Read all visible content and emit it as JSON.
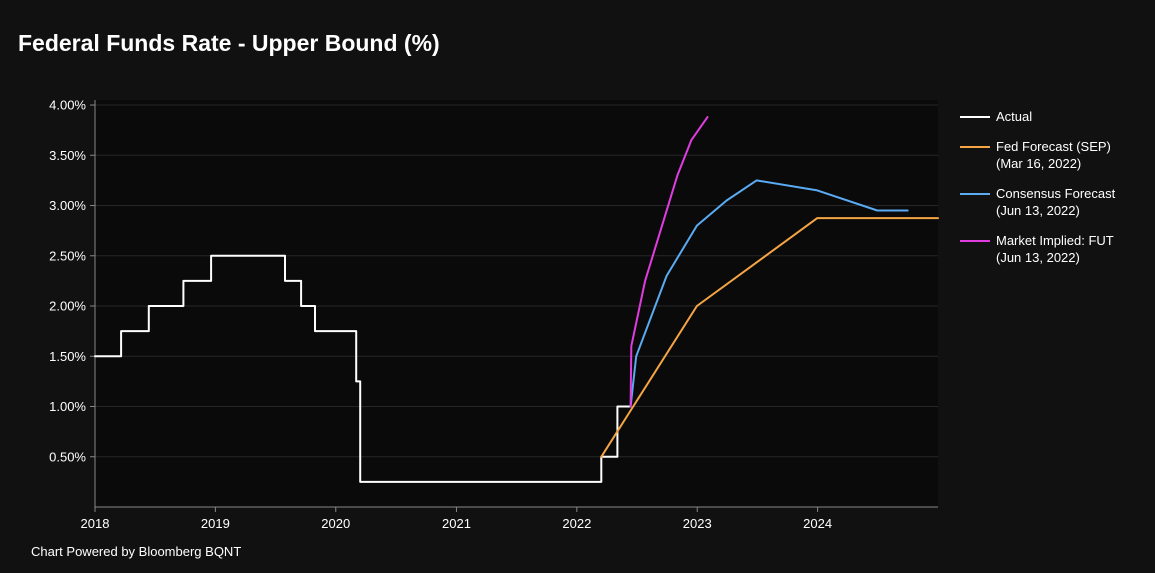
{
  "chart_data": {
    "type": "line",
    "title": "Federal Funds Rate - Upper Bound (%)",
    "footer": "Chart Powered by Bloomberg BQNT",
    "x_axis": {
      "type": "date",
      "range": [
        "2018-01-01",
        "2024-12-31"
      ],
      "ticks": [
        {
          "label": "2018",
          "value": "2018-01-01"
        },
        {
          "label": "2019",
          "value": "2019-01-01"
        },
        {
          "label": "2020",
          "value": "2020-01-01"
        },
        {
          "label": "2021",
          "value": "2021-01-01"
        },
        {
          "label": "2022",
          "value": "2022-01-01"
        },
        {
          "label": "2023",
          "value": "2023-01-01"
        },
        {
          "label": "2024",
          "value": "2024-01-01"
        }
      ]
    },
    "y_axis": {
      "range": [
        0.0,
        4.05
      ],
      "ticks": [
        {
          "label": "0.50%",
          "value": 0.5
        },
        {
          "label": "1.00%",
          "value": 1.0
        },
        {
          "label": "1.50%",
          "value": 1.5
        },
        {
          "label": "2.00%",
          "value": 2.0
        },
        {
          "label": "2.50%",
          "value": 2.5
        },
        {
          "label": "3.00%",
          "value": 3.0
        },
        {
          "label": "3.50%",
          "value": 3.5
        },
        {
          "label": "4.00%",
          "value": 4.0
        }
      ]
    },
    "grid": {
      "horizontal": true,
      "vertical": false
    },
    "legend_position": "right",
    "series": [
      {
        "id": "actual",
        "label_lines": [
          "Actual"
        ],
        "color": "#ffffff",
        "step": true,
        "points": [
          [
            "2018-01-01",
            1.5
          ],
          [
            "2018-03-21",
            1.75
          ],
          [
            "2018-06-13",
            2.0
          ],
          [
            "2018-09-26",
            2.25
          ],
          [
            "2018-12-19",
            2.5
          ],
          [
            "2019-07-31",
            2.25
          ],
          [
            "2019-09-18",
            2.0
          ],
          [
            "2019-10-30",
            1.75
          ],
          [
            "2020-03-03",
            1.25
          ],
          [
            "2020-03-15",
            0.25
          ],
          [
            "2022-03-16",
            0.5
          ],
          [
            "2022-05-04",
            1.0
          ],
          [
            "2022-06-13",
            1.0
          ]
        ]
      },
      {
        "id": "fed-forecast",
        "label_lines": [
          "Fed Forecast (SEP)",
          "(Mar 16, 2022)"
        ],
        "color": "#f5a544",
        "step": false,
        "points": [
          [
            "2022-03-16",
            0.5
          ],
          [
            "2022-12-31",
            2.0
          ],
          [
            "2023-12-31",
            2.875
          ],
          [
            "2024-12-31",
            2.875
          ]
        ]
      },
      {
        "id": "consensus-forecast",
        "label_lines": [
          "Consensus Forecast",
          "(Jun 13, 2022)"
        ],
        "color": "#5aabf2",
        "step": false,
        "points": [
          [
            "2022-06-13",
            1.0
          ],
          [
            "2022-06-30",
            1.5
          ],
          [
            "2022-09-30",
            2.3
          ],
          [
            "2022-12-31",
            2.8
          ],
          [
            "2023-03-31",
            3.05
          ],
          [
            "2023-06-30",
            3.25
          ],
          [
            "2023-12-31",
            3.15
          ],
          [
            "2024-06-30",
            2.95
          ],
          [
            "2024-09-30",
            2.95
          ]
        ]
      },
      {
        "id": "market-implied",
        "label_lines": [
          "Market Implied: FUT",
          "(Jun 13, 2022)"
        ],
        "color": "#e03ce0",
        "step": false,
        "points": [
          [
            "2022-06-13",
            1.0
          ],
          [
            "2022-06-15",
            1.6
          ],
          [
            "2022-07-27",
            2.25
          ],
          [
            "2022-09-21",
            2.85
          ],
          [
            "2022-11-02",
            3.3
          ],
          [
            "2022-12-14",
            3.65
          ],
          [
            "2023-02-01",
            3.88
          ]
        ]
      }
    ]
  }
}
